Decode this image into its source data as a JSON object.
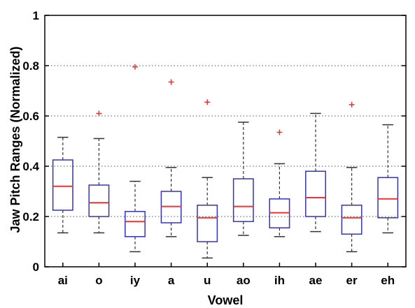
{
  "chart_data": {
    "type": "box",
    "xlabel": "Vowel",
    "ylabel": "Jaw Pitch Ranges (Normalized)",
    "ylim": [
      0,
      1
    ],
    "yticks": [
      "0",
      "0.2",
      "0.4",
      "0.6",
      "0.8",
      "1"
    ],
    "grid": "horizontal dotted",
    "colors": {
      "box": "#3333bb",
      "median": "#ee3333",
      "outlier": "#ee3333",
      "whisker": "#333333",
      "grid": "#555555"
    },
    "categories": [
      "ai",
      "o",
      "iy",
      "a",
      "u",
      "ao",
      "ih",
      "ae",
      "er",
      "eh"
    ],
    "boxes": [
      {
        "min": 0.135,
        "q1": 0.225,
        "median": 0.32,
        "q3": 0.425,
        "max": 0.515,
        "outliers": []
      },
      {
        "min": 0.135,
        "q1": 0.2,
        "median": 0.255,
        "q3": 0.325,
        "max": 0.51,
        "outliers": [
          0.61
        ]
      },
      {
        "min": 0.06,
        "q1": 0.12,
        "median": 0.18,
        "q3": 0.22,
        "max": 0.34,
        "outliers": [
          0.795
        ]
      },
      {
        "min": 0.12,
        "q1": 0.175,
        "median": 0.24,
        "q3": 0.3,
        "max": 0.395,
        "outliers": [
          0.735
        ]
      },
      {
        "min": 0.035,
        "q1": 0.1,
        "median": 0.195,
        "q3": 0.245,
        "max": 0.355,
        "outliers": [
          0.655
        ]
      },
      {
        "min": 0.125,
        "q1": 0.18,
        "median": 0.24,
        "q3": 0.35,
        "max": 0.575,
        "outliers": []
      },
      {
        "min": 0.12,
        "q1": 0.155,
        "median": 0.215,
        "q3": 0.27,
        "max": 0.41,
        "outliers": [
          0.535
        ]
      },
      {
        "min": 0.14,
        "q1": 0.2,
        "median": 0.275,
        "q3": 0.38,
        "max": 0.61,
        "outliers": []
      },
      {
        "min": 0.06,
        "q1": 0.13,
        "median": 0.195,
        "q3": 0.245,
        "max": 0.395,
        "outliers": [
          0.645
        ]
      },
      {
        "min": 0.135,
        "q1": 0.195,
        "median": 0.27,
        "q3": 0.355,
        "max": 0.565,
        "outliers": []
      }
    ]
  }
}
